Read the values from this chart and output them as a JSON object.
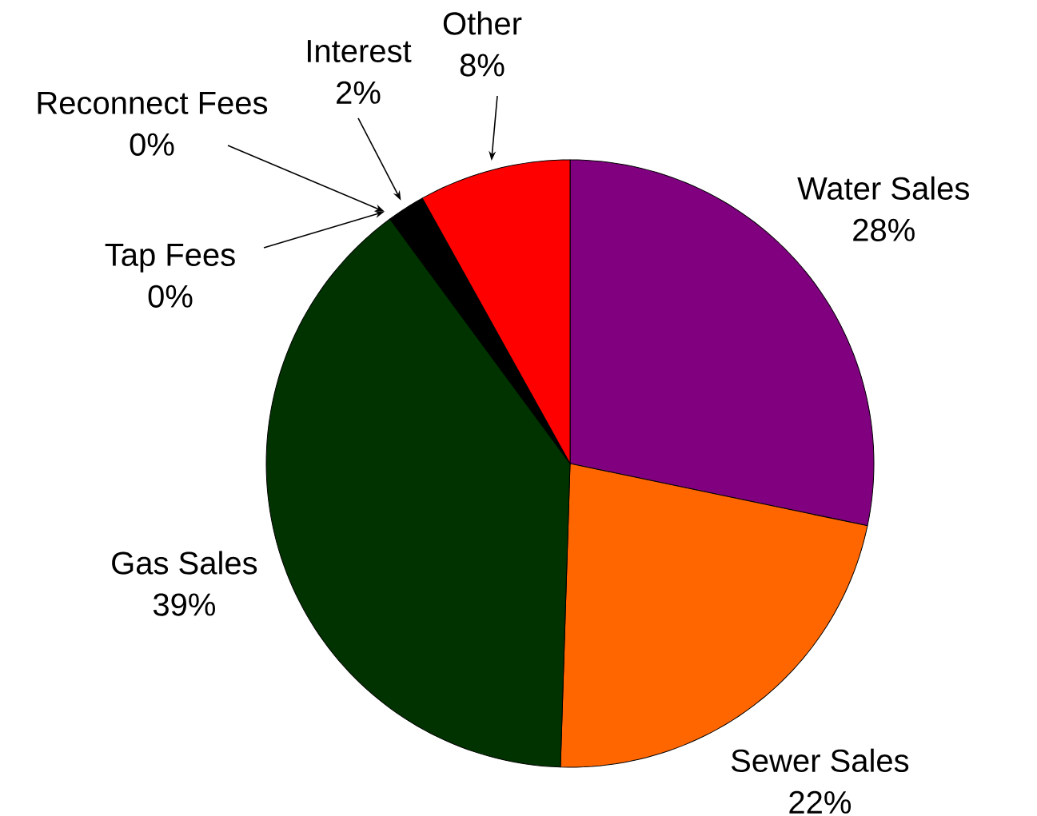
{
  "chart_data": {
    "type": "pie",
    "categories": [
      "Water Sales",
      "Sewer Sales",
      "Gas Sales",
      "Tap Fees",
      "Reconnect Fees",
      "Interest",
      "Other"
    ],
    "values": [
      28,
      22,
      39,
      0,
      0,
      2,
      8
    ],
    "value_labels": [
      "28%",
      "22%",
      "39%",
      "0%",
      "0%",
      "2%",
      "8%"
    ],
    "colors": [
      "#800080",
      "#ff6600",
      "#003300",
      "#999999",
      "#ffcc00",
      "#000000",
      "#ff0000"
    ]
  }
}
